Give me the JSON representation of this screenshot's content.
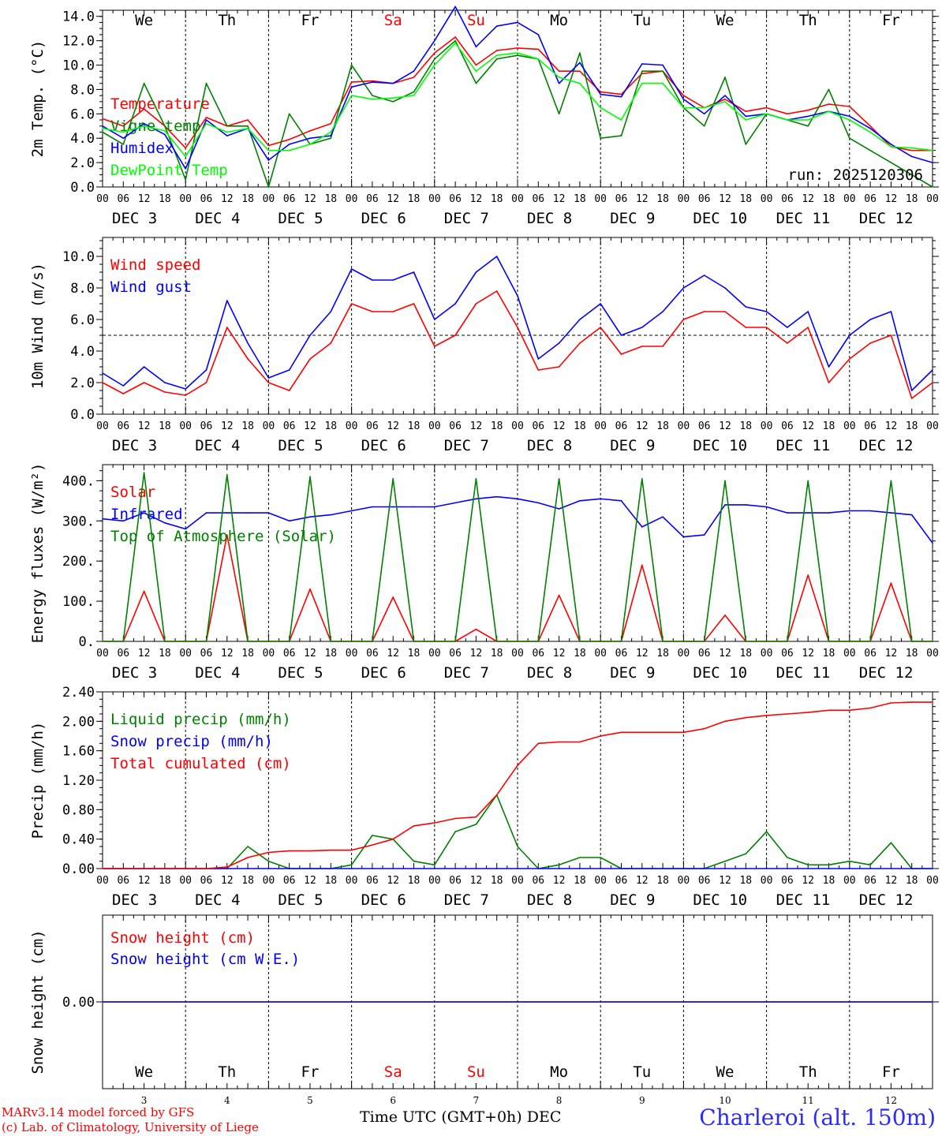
{
  "run_label": "run: 2025120306",
  "footer": {
    "model": "MARv3.14 model forced by GFS",
    "credit": "(c) Lab. of Climatology, University of Liege",
    "axis_title": "Time UTC (GMT+0h) DEC",
    "station": "Charleroi (alt. 150m)"
  },
  "days": {
    "weekdays": [
      "We",
      "Th",
      "Fr",
      "Sa",
      "Su",
      "Mo",
      "Tu",
      "We",
      "Th",
      "Fr"
    ],
    "weekend_color": "#ff0000",
    "dates": [
      "DEC  3",
      "DEC  4",
      "DEC  5",
      "DEC  6",
      "DEC  7",
      "DEC  8",
      "DEC  9",
      "DEC 10",
      "DEC 11",
      "DEC 12"
    ],
    "day_numbers": [
      "3",
      "4",
      "5",
      "6",
      "7",
      "8",
      "9",
      "10",
      "11",
      "12"
    ],
    "hour_ticks": [
      "00",
      "06",
      "12",
      "18"
    ],
    "final_hour": "00"
  },
  "chart_data": [
    {
      "type": "line",
      "ylabel": "2m Temp. (°C)",
      "ylim": [
        0,
        14.5
      ],
      "yticks": [
        0,
        2,
        4,
        6,
        8,
        10,
        12,
        14
      ],
      "ytick_labels": [
        "0.0",
        "2.0",
        "4.0",
        "6.0",
        "8.0",
        "10.0",
        "12.0",
        "14.0"
      ],
      "x_hours": [
        0,
        6,
        12,
        18,
        24,
        30,
        36,
        42,
        48,
        54,
        60,
        66,
        72,
        78,
        84,
        90,
        96,
        102,
        108,
        114,
        120,
        126,
        132,
        138,
        144,
        150,
        156,
        162,
        168,
        174,
        180,
        186,
        192,
        198,
        204,
        210,
        216,
        222,
        228,
        234,
        240
      ],
      "series": [
        {
          "name": "Temperature",
          "color": "#ff0000",
          "values": [
            5.6,
            5.0,
            6.4,
            5.0,
            3.2,
            5.7,
            5.0,
            5.5,
            3.4,
            3.9,
            4.6,
            5.2,
            8.6,
            8.7,
            8.5,
            9.0,
            11.0,
            12.3,
            10.0,
            11.2,
            11.4,
            11.3,
            9.5,
            9.5,
            7.8,
            7.6,
            9.3,
            9.5,
            7.5,
            6.5,
            7.2,
            6.2,
            6.5,
            6.0,
            6.3,
            6.8,
            6.6,
            5.0,
            3.3,
            3.0,
            3.0
          ]
        },
        {
          "name": "Vigne temp",
          "color": "#008000",
          "values": [
            4.5,
            3.5,
            8.5,
            5.0,
            0.6,
            8.5,
            5.0,
            5.0,
            0.0,
            6.0,
            3.5,
            4.0,
            10.0,
            7.5,
            7.0,
            7.8,
            10.5,
            12.0,
            8.5,
            10.5,
            10.8,
            10.5,
            6.0,
            11.0,
            4.0,
            4.2,
            9.5,
            9.5,
            6.5,
            5.0,
            9.0,
            3.5,
            6.0,
            5.5,
            5.0,
            8.0,
            4.0,
            3.0,
            2.0,
            1.0,
            0.0
          ]
        },
        {
          "name": "Humidex",
          "color": "#0000ff",
          "values": [
            5.0,
            4.0,
            5.2,
            4.3,
            1.5,
            5.5,
            4.2,
            4.8,
            2.2,
            3.5,
            4.0,
            4.2,
            8.2,
            8.6,
            8.5,
            9.5,
            12.0,
            14.8,
            11.5,
            13.2,
            13.5,
            12.5,
            8.5,
            10.2,
            7.6,
            7.4,
            10.1,
            10.0,
            7.2,
            6.0,
            7.5,
            5.8,
            6.0,
            5.5,
            5.8,
            6.2,
            5.8,
            4.8,
            3.5,
            2.5,
            2.0
          ]
        },
        {
          "name": "DewPoint Temp",
          "color": "#00ff00",
          "values": [
            4.8,
            4.5,
            5.0,
            4.6,
            2.5,
            5.2,
            4.5,
            4.8,
            3.0,
            3.0,
            3.5,
            4.5,
            7.5,
            7.2,
            7.3,
            7.5,
            10.0,
            11.8,
            9.5,
            10.8,
            11.0,
            10.5,
            9.0,
            8.5,
            6.5,
            5.5,
            8.5,
            8.5,
            6.5,
            6.5,
            7.0,
            5.5,
            6.0,
            5.5,
            5.5,
            6.2,
            5.5,
            4.5,
            3.3,
            3.2,
            3.0
          ]
        }
      ]
    },
    {
      "type": "line",
      "ylabel": "10m Wind (m/s)",
      "ylim": [
        0,
        11.2
      ],
      "yticks": [
        0,
        2,
        4,
        6,
        8,
        10
      ],
      "ytick_labels": [
        "0.0",
        "2.0",
        "4.0",
        "6.0",
        "8.0",
        "10.0"
      ],
      "reference_line": 5.0,
      "x_hours": [
        0,
        6,
        12,
        18,
        24,
        30,
        36,
        42,
        48,
        54,
        60,
        66,
        72,
        78,
        84,
        90,
        96,
        102,
        108,
        114,
        120,
        126,
        132,
        138,
        144,
        150,
        156,
        162,
        168,
        174,
        180,
        186,
        192,
        198,
        204,
        210,
        216,
        222,
        228,
        234,
        240
      ],
      "series": [
        {
          "name": "Wind speed",
          "color": "#ff0000",
          "values": [
            2.0,
            1.3,
            2.0,
            1.4,
            1.2,
            2.0,
            5.5,
            3.5,
            2.0,
            1.5,
            3.5,
            4.5,
            7.0,
            6.5,
            6.5,
            7.0,
            4.3,
            5.0,
            7.0,
            7.8,
            5.5,
            2.8,
            3.0,
            4.5,
            5.5,
            3.8,
            4.3,
            4.3,
            6.0,
            6.5,
            6.5,
            5.5,
            5.5,
            4.5,
            5.5,
            2.0,
            3.5,
            4.5,
            5.0,
            1.0,
            2.0
          ]
        },
        {
          "name": "Wind gust",
          "color": "#0000ff",
          "values": [
            2.6,
            1.8,
            3.0,
            2.0,
            1.6,
            2.8,
            7.2,
            4.5,
            2.3,
            2.8,
            5.0,
            6.5,
            9.2,
            8.5,
            8.5,
            9.0,
            6.0,
            7.0,
            9.0,
            10.0,
            7.5,
            3.5,
            4.5,
            6.0,
            7.0,
            5.0,
            5.5,
            6.5,
            8.0,
            8.8,
            8.0,
            6.8,
            6.5,
            5.5,
            6.5,
            3.0,
            5.0,
            6.0,
            6.5,
            1.5,
            2.8
          ]
        }
      ]
    },
    {
      "type": "line",
      "ylabel": "Energy fluxes (W/m²)",
      "ylim": [
        0,
        440
      ],
      "yticks": [
        0,
        100,
        200,
        300,
        400
      ],
      "ytick_labels": [
        "0.",
        "100.",
        "200.",
        "300.",
        "400."
      ],
      "x_hours": [
        0,
        6,
        12,
        18,
        24,
        30,
        36,
        42,
        48,
        54,
        60,
        66,
        72,
        78,
        84,
        90,
        96,
        102,
        108,
        114,
        120,
        126,
        132,
        138,
        144,
        150,
        156,
        162,
        168,
        174,
        180,
        186,
        192,
        198,
        204,
        210,
        216,
        222,
        228,
        234,
        240
      ],
      "series": [
        {
          "name": "Solar",
          "color": "#ff0000",
          "values": [
            0,
            0,
            125,
            0,
            0,
            0,
            265,
            0,
            0,
            0,
            130,
            0,
            0,
            0,
            110,
            0,
            0,
            0,
            30,
            0,
            0,
            0,
            115,
            0,
            0,
            0,
            190,
            0,
            0,
            0,
            65,
            0,
            0,
            0,
            165,
            0,
            0,
            0,
            145,
            0,
            0
          ]
        },
        {
          "name": "Infrared",
          "color": "#0000ff",
          "values": [
            305,
            300,
            320,
            295,
            280,
            320,
            320,
            320,
            320,
            300,
            310,
            315,
            325,
            335,
            335,
            335,
            335,
            345,
            355,
            360,
            355,
            345,
            330,
            350,
            355,
            350,
            285,
            310,
            260,
            265,
            340,
            340,
            335,
            320,
            320,
            320,
            325,
            325,
            320,
            315,
            245
          ]
        },
        {
          "name": "Top of Atmosphere (Solar)",
          "color": "#008000",
          "values": [
            0,
            0,
            420,
            0,
            0,
            0,
            415,
            0,
            0,
            0,
            410,
            0,
            0,
            0,
            405,
            0,
            0,
            0,
            405,
            0,
            0,
            0,
            405,
            0,
            0,
            0,
            405,
            0,
            0,
            0,
            400,
            0,
            0,
            0,
            400,
            0,
            0,
            0,
            400,
            0,
            0
          ]
        }
      ]
    },
    {
      "type": "line",
      "ylabel": "Precip (mm/h)",
      "ylim": [
        0,
        2.4
      ],
      "yticks": [
        0,
        0.4,
        0.8,
        1.2,
        1.6,
        2.0,
        2.4
      ],
      "ytick_labels": [
        "0.00",
        "0.40",
        "0.80",
        "1.20",
        "1.60",
        "2.00",
        "2.40"
      ],
      "x_hours": [
        0,
        6,
        12,
        18,
        24,
        30,
        36,
        42,
        48,
        54,
        60,
        66,
        72,
        78,
        84,
        90,
        96,
        102,
        108,
        114,
        120,
        126,
        132,
        138,
        144,
        150,
        156,
        162,
        168,
        174,
        180,
        186,
        192,
        198,
        204,
        210,
        216,
        222,
        228,
        234,
        240
      ],
      "series": [
        {
          "name": "Liquid precip (mm/h)",
          "color": "#008000",
          "values": [
            0,
            0,
            0,
            0,
            0,
            0,
            0,
            0.3,
            0.1,
            0,
            0,
            0,
            0.05,
            0.45,
            0.4,
            0.1,
            0.05,
            0.5,
            0.6,
            1.0,
            0.3,
            0,
            0.05,
            0.15,
            0.15,
            0,
            0,
            0,
            0,
            0,
            0.1,
            0.2,
            0.5,
            0.15,
            0.05,
            0.05,
            0.1,
            0.05,
            0.35,
            0,
            0
          ]
        },
        {
          "name": "Snow precip (mm/h)",
          "color": "#0000ff",
          "values": [
            0,
            0,
            0,
            0,
            0,
            0,
            0,
            0,
            0,
            0,
            0,
            0,
            0,
            0,
            0,
            0,
            0,
            0,
            0,
            0,
            0,
            0,
            0,
            0,
            0,
            0,
            0,
            0,
            0,
            0,
            0,
            0,
            0,
            0,
            0,
            0,
            0,
            0,
            0,
            0,
            0
          ]
        },
        {
          "name": "Total cumulated (cm)",
          "color": "#ff0000",
          "values": [
            0,
            0,
            0,
            0,
            0,
            0,
            0.02,
            0.15,
            0.22,
            0.24,
            0.24,
            0.25,
            0.25,
            0.32,
            0.4,
            0.58,
            0.62,
            0.68,
            0.7,
            1.0,
            1.4,
            1.7,
            1.72,
            1.72,
            1.8,
            1.85,
            1.85,
            1.85,
            1.85,
            1.9,
            2.0,
            2.05,
            2.08,
            2.1,
            2.12,
            2.15,
            2.15,
            2.18,
            2.25,
            2.26,
            2.26
          ]
        }
      ]
    },
    {
      "type": "line",
      "ylabel": "Snow height (cm)",
      "ylim": [
        -1,
        1
      ],
      "yticks": [
        0
      ],
      "ytick_labels": [
        "0.00"
      ],
      "x_hours": [
        0,
        240
      ],
      "series": [
        {
          "name": "Snow height (cm)",
          "color": "#ff0000",
          "values": [
            0,
            0
          ]
        },
        {
          "name": "Snow height (cm W.E.)",
          "color": "#0000ff",
          "values": [
            0,
            0
          ]
        }
      ]
    }
  ]
}
